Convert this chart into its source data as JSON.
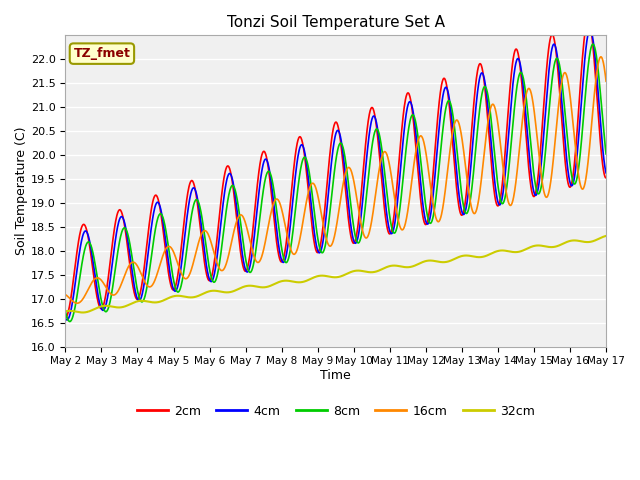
{
  "title": "Tonzi Soil Temperature Set A",
  "xlabel": "Time",
  "ylabel": "Soil Temperature (C)",
  "ylim": [
    16.0,
    22.5
  ],
  "yticks": [
    16.0,
    16.5,
    17.0,
    17.5,
    18.0,
    18.5,
    19.0,
    19.5,
    20.0,
    20.5,
    21.0,
    21.5,
    22.0
  ],
  "colors": {
    "2cm": "#ff0000",
    "4cm": "#0000ff",
    "8cm": "#00cc00",
    "16cm": "#ff8800",
    "32cm": "#cccc00"
  },
  "legend_label": "TZ_fmet",
  "background_color": "#ffffff",
  "plot_bg_color": "#f0f0f0",
  "n_days": 15,
  "points_per_day": 96
}
